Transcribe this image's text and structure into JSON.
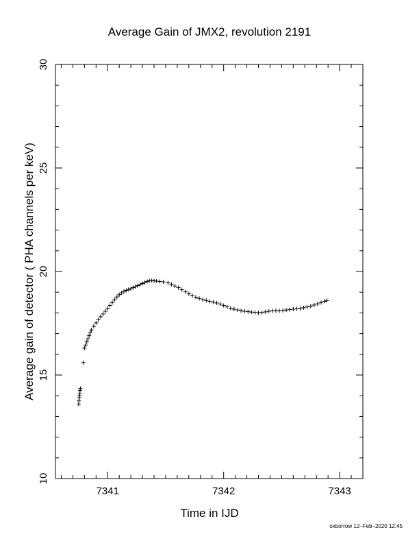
{
  "chart_data": {
    "type": "scatter",
    "title": "Average Gain of JMX2, revolution 2191",
    "xlabel": "Time in IJD",
    "ylabel": "Average gain of detector ( PHA channels per keV)",
    "xlim": [
      7340.55,
      7343.2
    ],
    "ylim": [
      10,
      30
    ],
    "xticks": [
      7341,
      7342,
      7343
    ],
    "yticks": [
      10,
      15,
      20,
      25,
      30
    ],
    "xminor_step": 0.1,
    "yminor_step": 1,
    "grid": false,
    "marker": "+",
    "points": [
      [
        7340.75,
        13.6
      ],
      [
        7340.752,
        13.75
      ],
      [
        7340.755,
        13.9
      ],
      [
        7340.757,
        14.0
      ],
      [
        7340.76,
        14.1
      ],
      [
        7340.762,
        14.25
      ],
      [
        7340.765,
        14.35
      ],
      [
        7340.79,
        15.6
      ],
      [
        7340.8,
        16.3
      ],
      [
        7340.81,
        16.45
      ],
      [
        7340.82,
        16.6
      ],
      [
        7340.83,
        16.75
      ],
      [
        7340.84,
        16.9
      ],
      [
        7340.85,
        17.05
      ],
      [
        7340.86,
        17.18
      ],
      [
        7340.88,
        17.35
      ],
      [
        7340.9,
        17.52
      ],
      [
        7340.92,
        17.68
      ],
      [
        7340.94,
        17.82
      ],
      [
        7340.96,
        17.95
      ],
      [
        7340.98,
        18.08
      ],
      [
        7341.0,
        18.22
      ],
      [
        7341.02,
        18.36
      ],
      [
        7341.04,
        18.5
      ],
      [
        7341.06,
        18.64
      ],
      [
        7341.08,
        18.77
      ],
      [
        7341.1,
        18.88
      ],
      [
        7341.12,
        18.97
      ],
      [
        7341.14,
        19.04
      ],
      [
        7341.16,
        19.09
      ],
      [
        7341.18,
        19.13
      ],
      [
        7341.2,
        19.17
      ],
      [
        7341.22,
        19.22
      ],
      [
        7341.24,
        19.27
      ],
      [
        7341.26,
        19.32
      ],
      [
        7341.28,
        19.37
      ],
      [
        7341.3,
        19.42
      ],
      [
        7341.32,
        19.47
      ],
      [
        7341.34,
        19.52
      ],
      [
        7341.36,
        19.55
      ],
      [
        7341.38,
        19.56
      ],
      [
        7341.4,
        19.55
      ],
      [
        7341.42,
        19.54
      ],
      [
        7341.45,
        19.52
      ],
      [
        7341.48,
        19.5
      ],
      [
        7341.52,
        19.45
      ],
      [
        7341.55,
        19.38
      ],
      [
        7341.58,
        19.3
      ],
      [
        7341.61,
        19.22
      ],
      [
        7341.64,
        19.12
      ],
      [
        7341.67,
        19.02
      ],
      [
        7341.7,
        18.92
      ],
      [
        7341.73,
        18.84
      ],
      [
        7341.76,
        18.76
      ],
      [
        7341.79,
        18.7
      ],
      [
        7341.82,
        18.64
      ],
      [
        7341.85,
        18.6
      ],
      [
        7341.88,
        18.56
      ],
      [
        7341.91,
        18.52
      ],
      [
        7341.94,
        18.48
      ],
      [
        7341.97,
        18.43
      ],
      [
        7342.0,
        18.36
      ],
      [
        7342.03,
        18.29
      ],
      [
        7342.06,
        18.23
      ],
      [
        7342.09,
        18.18
      ],
      [
        7342.12,
        18.14
      ],
      [
        7342.15,
        18.11
      ],
      [
        7342.18,
        18.08
      ],
      [
        7342.21,
        18.06
      ],
      [
        7342.24,
        18.04
      ],
      [
        7342.27,
        18.02
      ],
      [
        7342.3,
        18.01
      ],
      [
        7342.33,
        18.02
      ],
      [
        7342.36,
        18.05
      ],
      [
        7342.39,
        18.08
      ],
      [
        7342.42,
        18.1
      ],
      [
        7342.45,
        18.11
      ],
      [
        7342.48,
        18.11
      ],
      [
        7342.51,
        18.12
      ],
      [
        7342.54,
        18.14
      ],
      [
        7342.57,
        18.16
      ],
      [
        7342.6,
        18.18
      ],
      [
        7342.63,
        18.2
      ],
      [
        7342.66,
        18.22
      ],
      [
        7342.69,
        18.25
      ],
      [
        7342.72,
        18.29
      ],
      [
        7342.75,
        18.33
      ],
      [
        7342.78,
        18.38
      ],
      [
        7342.81,
        18.44
      ],
      [
        7342.84,
        18.5
      ],
      [
        7342.87,
        18.56
      ],
      [
        7342.89,
        18.6
      ]
    ]
  },
  "footer": "oxborrow 12–Feb–2020 12:45"
}
